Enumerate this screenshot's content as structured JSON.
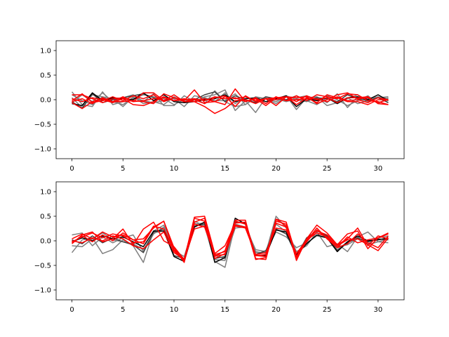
{
  "chart_data": [
    {
      "type": "line",
      "ylim": [
        -1.2,
        1.2
      ],
      "xlim": [
        -1.55,
        32.55
      ],
      "x_ticks": [
        0,
        5,
        10,
        15,
        20,
        25,
        30
      ],
      "y_ticks": [
        1.0,
        0.5,
        0.0,
        -0.5,
        -1.0
      ],
      "x_tick_labels": [
        "0",
        "5",
        "10",
        "15",
        "20",
        "25",
        "30"
      ],
      "y_tick_labels": [
        "1.0",
        "0.5",
        "0.0",
        "−0.5",
        "−1.0"
      ],
      "grid": false,
      "series": [
        {
          "color": "#808080",
          "values": [
            0.16,
            -0.1,
            -0.14,
            0.16,
            -0.1,
            -0.04,
            0.02,
            0.1,
            0.06,
            0.02,
            -0.1,
            0.0,
            -0.04,
            0.06,
            0.1,
            0.2,
            -0.22,
            -0.02,
            -0.26,
            0.04,
            -0.04,
            0.08,
            0.0,
            -0.04,
            0.06,
            -0.12,
            -0.06,
            0.04,
            -0.08,
            -0.02,
            0.06,
            -0.06
          ]
        },
        {
          "color": "#808080",
          "values": [
            0.04,
            -0.16,
            0.1,
            0.06,
            -0.06,
            0.04,
            0.1,
            -0.04,
            0.12,
            -0.12,
            -0.12,
            0.08,
            -0.04,
            0.04,
            -0.02,
            -0.02,
            0.12,
            -0.1,
            0.04,
            0.02,
            -0.04,
            0.08,
            -0.2,
            0.04,
            0.06,
            -0.06,
            0.12,
            -0.16,
            0.06,
            0.02,
            0.06,
            0.02
          ]
        },
        {
          "color": "#808080",
          "values": [
            -0.06,
            0.1,
            -0.04,
            0.14,
            -0.04,
            -0.1,
            0.04,
            -0.02,
            -0.06,
            -0.02,
            0.02,
            -0.14,
            0.08,
            0.04,
            -0.04,
            0.14,
            -0.08,
            0.06,
            -0.04,
            0.02,
            0.02,
            -0.04,
            0.02,
            -0.02,
            -0.1,
            0.04,
            -0.04,
            0.02,
            0.1,
            -0.04,
            0.04,
            0.06
          ]
        },
        {
          "color": "#808080",
          "values": [
            0.1,
            -0.02,
            -0.1,
            0.06,
            0.02,
            -0.14,
            0.06,
            -0.08,
            -0.04,
            -0.1,
            0.06,
            -0.04,
            0.02,
            -0.08,
            0.18,
            -0.04,
            -0.14,
            -0.1,
            0.06,
            0.02,
            -0.08,
            0.06,
            0.04,
            0.08,
            -0.02,
            0.08,
            0.0,
            -0.12,
            -0.02,
            0.08,
            -0.08,
            0.04
          ]
        },
        {
          "color": "#404040",
          "values": [
            -0.04,
            -0.18,
            0.12,
            -0.06,
            0.0,
            0.04,
            0.08,
            0.12,
            0.04,
            -0.02,
            0.04,
            -0.04,
            0.0,
            0.1,
            0.16,
            -0.04,
            0.08,
            0.0,
            -0.06,
            0.06,
            0.02,
            0.0,
            0.08,
            -0.02,
            0.04,
            0.02,
            -0.04,
            0.1,
            0.02,
            -0.02,
            0.04,
            -0.06
          ]
        },
        {
          "color": "#000000",
          "values": [
            -0.08,
            -0.12,
            0.14,
            -0.02,
            0.04,
            0.02,
            0.0,
            0.14,
            -0.02,
            0.1,
            -0.04,
            -0.06,
            -0.04,
            0.0,
            0.02,
            0.1,
            -0.04,
            0.02,
            0.04,
            -0.04,
            0.02,
            0.08,
            -0.14,
            0.02,
            -0.02,
            0.04,
            -0.08,
            0.04,
            0.06,
            0.0,
            0.1,
            -0.02
          ]
        },
        {
          "color": "#ff0000",
          "values": [
            -0.02,
            0.12,
            -0.06,
            -0.02,
            0.06,
            -0.02,
            0.08,
            0.02,
            0.1,
            -0.04,
            0.04,
            -0.02,
            0.2,
            -0.06,
            -0.04,
            -0.1,
            0.22,
            -0.04,
            0.04,
            -0.08,
            0.06,
            -0.02,
            0.08,
            -0.02,
            0.1,
            0.06,
            0.02,
            0.12,
            0.1,
            -0.02,
            -0.04,
            -0.1
          ]
        },
        {
          "color": "#ff0000",
          "values": [
            0.1,
            0.1,
            0.02,
            -0.06,
            0.02,
            0.04,
            -0.04,
            0.14,
            0.14,
            -0.02,
            0.1,
            -0.04,
            0.0,
            -0.08,
            0.04,
            0.08,
            -0.14,
            0.08,
            -0.04,
            0.02,
            -0.12,
            0.06,
            0.04,
            0.06,
            -0.08,
            0.0,
            0.1,
            0.14,
            0.02,
            0.04,
            -0.06,
            0.0
          ]
        },
        {
          "color": "#ff0000",
          "values": [
            -0.06,
            -0.18,
            -0.04,
            0.02,
            -0.04,
            -0.04,
            -0.02,
            -0.04,
            -0.08,
            0.12,
            0.04,
            -0.04,
            -0.04,
            -0.14,
            -0.28,
            -0.18,
            -0.02,
            0.0,
            -0.08,
            0.02,
            0.04,
            0.06,
            -0.1,
            0.04,
            -0.06,
            0.1,
            0.04,
            -0.04,
            -0.04,
            -0.1,
            0.0,
            0.0
          ]
        },
        {
          "color": "#ff0000",
          "values": [
            -0.04,
            0.02,
            -0.08,
            0.04,
            -0.04,
            0.06,
            -0.04,
            -0.02,
            0.02,
            0.04,
            -0.02,
            0.0,
            0.02,
            -0.02,
            0.06,
            0.02,
            0.04,
            -0.04,
            0.02,
            -0.12,
            0.04,
            -0.02,
            0.0,
            0.02,
            0.02,
            -0.04,
            0.06,
            -0.02,
            0.0,
            -0.06,
            0.04,
            0.0
          ]
        },
        {
          "color": "#ff0000",
          "values": [
            0.02,
            -0.04,
            0.04,
            0.0,
            -0.06,
            0.02,
            -0.1,
            -0.12,
            -0.04,
            0.06,
            -0.02,
            0.02,
            -0.04,
            0.02,
            -0.04,
            0.06,
            0.02,
            0.06,
            -0.02,
            0.02,
            0.0,
            0.06,
            -0.04,
            0.08,
            0.0,
            0.04,
            -0.06,
            0.04,
            0.04,
            0.06,
            -0.08,
            -0.1
          ]
        }
      ]
    },
    {
      "type": "line",
      "ylim": [
        -1.2,
        1.2
      ],
      "xlim": [
        -1.55,
        32.55
      ],
      "x_ticks": [
        0,
        5,
        10,
        15,
        20,
        25,
        30
      ],
      "y_ticks": [
        1.0,
        0.5,
        0.0,
        -0.5,
        -1.0
      ],
      "x_tick_labels": [
        "0",
        "5",
        "10",
        "15",
        "20",
        "25",
        "30"
      ],
      "y_tick_labels": [
        "1.0",
        "0.5",
        "0.0",
        "−0.5",
        "−1.0"
      ],
      "grid": false,
      "series": [
        {
          "color": "#808080",
          "values": [
            -0.24,
            0.02,
            0.06,
            -0.26,
            -0.18,
            0.02,
            -0.1,
            -0.44,
            0.2,
            0.32,
            -0.14,
            -0.38,
            0.4,
            0.3,
            -0.42,
            -0.54,
            0.34,
            0.28,
            -0.24,
            -0.24,
            0.5,
            0.26,
            -0.22,
            -0.1,
            0.18,
            -0.12,
            -0.06,
            -0.22,
            0.08,
            0.18,
            -0.02,
            -0.04
          ]
        },
        {
          "color": "#808080",
          "values": [
            0.12,
            0.16,
            -0.1,
            0.08,
            -0.04,
            0.06,
            0.12,
            -0.22,
            0.14,
            0.28,
            -0.2,
            -0.32,
            0.34,
            0.36,
            -0.38,
            -0.4,
            0.4,
            0.34,
            -0.22,
            -0.26,
            0.34,
            0.18,
            -0.28,
            0.02,
            0.16,
            0.1,
            -0.12,
            -0.08,
            0.04,
            -0.06,
            0.06,
            0.1
          ]
        },
        {
          "color": "#808080",
          "values": [
            -0.1,
            -0.12,
            0.04,
            0.16,
            0.02,
            -0.02,
            -0.06,
            -0.18,
            0.16,
            0.2,
            -0.2,
            -0.4,
            0.36,
            0.28,
            -0.3,
            -0.36,
            0.26,
            0.28,
            -0.18,
            -0.22,
            0.18,
            0.08,
            -0.14,
            -0.04,
            0.1,
            0.06,
            -0.18,
            -0.02,
            0.08,
            -0.08,
            -0.02,
            0.04
          ]
        },
        {
          "color": "#404040",
          "values": [
            0.02,
            -0.06,
            0.1,
            -0.04,
            0.06,
            -0.02,
            -0.08,
            -0.24,
            0.18,
            0.24,
            -0.3,
            -0.36,
            0.3,
            0.34,
            -0.36,
            -0.32,
            0.38,
            0.36,
            -0.28,
            -0.2,
            0.24,
            0.14,
            -0.3,
            0.06,
            0.2,
            0.1,
            -0.2,
            -0.04,
            0.06,
            -0.02,
            0.04,
            0.02
          ]
        },
        {
          "color": "#000000",
          "values": [
            -0.02,
            0.06,
            0.0,
            0.1,
            0.04,
            0.08,
            -0.02,
            -0.12,
            0.2,
            0.2,
            -0.32,
            -0.42,
            0.28,
            0.38,
            -0.44,
            -0.34,
            0.46,
            0.34,
            -0.3,
            -0.3,
            0.22,
            0.18,
            -0.28,
            -0.06,
            0.12,
            0.06,
            -0.22,
            -0.02,
            0.1,
            0.0,
            0.02,
            0.06
          ]
        },
        {
          "color": "#ff0000",
          "values": [
            -0.06,
            0.12,
            0.18,
            -0.02,
            0.04,
            0.24,
            -0.08,
            0.24,
            0.38,
            0.0,
            -0.12,
            -0.38,
            0.48,
            0.5,
            -0.26,
            -0.1,
            0.36,
            0.38,
            -0.3,
            -0.32,
            0.44,
            0.3,
            -0.36,
            0.0,
            0.26,
            0.04,
            -0.14,
            0.08,
            -0.04,
            0.02,
            0.06,
            0.14
          ]
        },
        {
          "color": "#ff0000",
          "values": [
            -0.04,
            0.1,
            -0.02,
            0.12,
            0.0,
            0.16,
            0.02,
            0.04,
            0.26,
            0.4,
            -0.14,
            -0.44,
            0.38,
            0.46,
            -0.32,
            -0.2,
            0.42,
            0.42,
            -0.36,
            -0.38,
            0.4,
            0.34,
            -0.4,
            0.04,
            0.32,
            0.16,
            -0.08,
            0.04,
            0.26,
            -0.1,
            0.1,
            0.04
          ]
        },
        {
          "color": "#ff0000",
          "values": [
            0.04,
            0.14,
            0.04,
            0.18,
            0.08,
            0.12,
            0.02,
            -0.06,
            0.28,
            0.4,
            -0.2,
            -0.42,
            0.46,
            0.4,
            -0.36,
            -0.26,
            0.4,
            0.34,
            -0.38,
            -0.34,
            0.44,
            0.38,
            -0.32,
            0.04,
            0.2,
            0.12,
            -0.08,
            0.14,
            0.2,
            -0.16,
            0.06,
            0.16
          ]
        },
        {
          "color": "#ff0000",
          "values": [
            -0.02,
            0.08,
            0.16,
            0.06,
            0.14,
            0.1,
            -0.04,
            -0.02,
            0.3,
            0.24,
            -0.18,
            -0.4,
            0.34,
            0.28,
            -0.28,
            -0.22,
            0.32,
            0.28,
            -0.3,
            -0.28,
            0.36,
            0.28,
            -0.32,
            -0.02,
            0.22,
            0.06,
            -0.14,
            -0.06,
            0.14,
            -0.04,
            -0.14,
            0.1
          ]
        },
        {
          "color": "#ff0000",
          "values": [
            0.0,
            -0.04,
            0.06,
            0.0,
            0.1,
            0.04,
            -0.1,
            -0.16,
            0.02,
            0.18,
            -0.24,
            -0.38,
            0.24,
            0.3,
            -0.3,
            -0.28,
            0.3,
            0.26,
            -0.28,
            -0.24,
            0.26,
            0.22,
            -0.26,
            0.02,
            0.16,
            0.08,
            -0.1,
            0.02,
            0.04,
            -0.08,
            -0.2,
            0.06
          ]
        }
      ]
    }
  ]
}
